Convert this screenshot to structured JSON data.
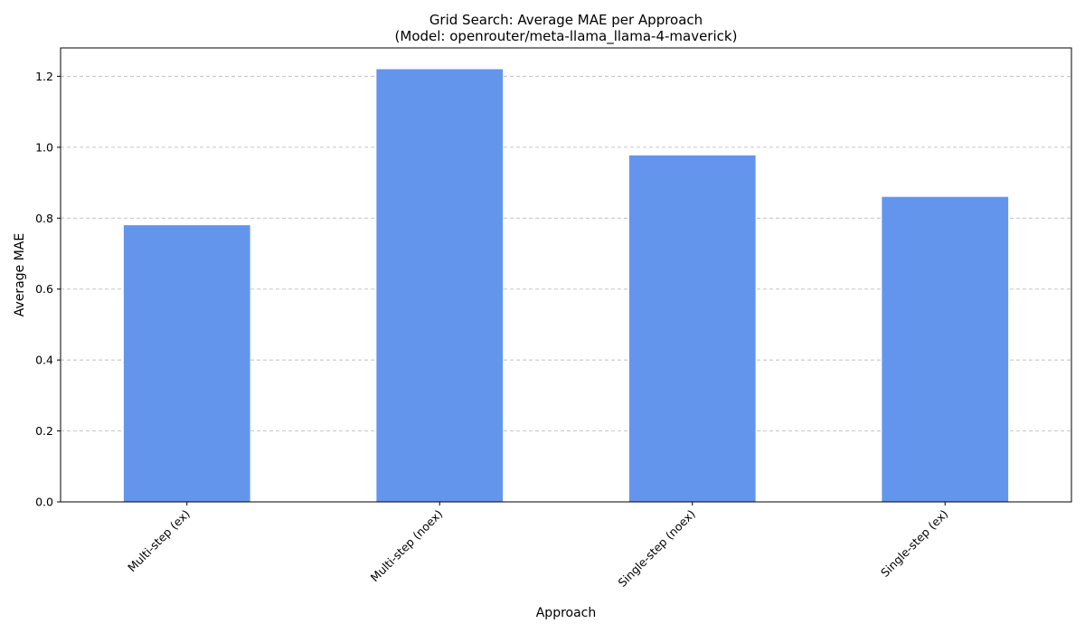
{
  "chart_data": {
    "type": "bar",
    "title": "Grid Search: Average MAE per Approach",
    "subtitle": "(Model: openrouter/meta-llama_llama-4-maverick)",
    "xlabel": "Approach",
    "ylabel": "Average MAE",
    "categories": [
      "Multi-step (ex)",
      "Multi-step (noex)",
      "Single-step (noex)",
      "Single-step (ex)"
    ],
    "values": [
      0.78,
      1.22,
      0.977,
      0.86
    ],
    "ylim": [
      0,
      1.28
    ],
    "yticks": [
      "0.0",
      "0.2",
      "0.4",
      "0.6",
      "0.8",
      "1.0",
      "1.2"
    ],
    "grid": "y-dashed",
    "bar_color": "#6495ED",
    "legend": "none"
  }
}
